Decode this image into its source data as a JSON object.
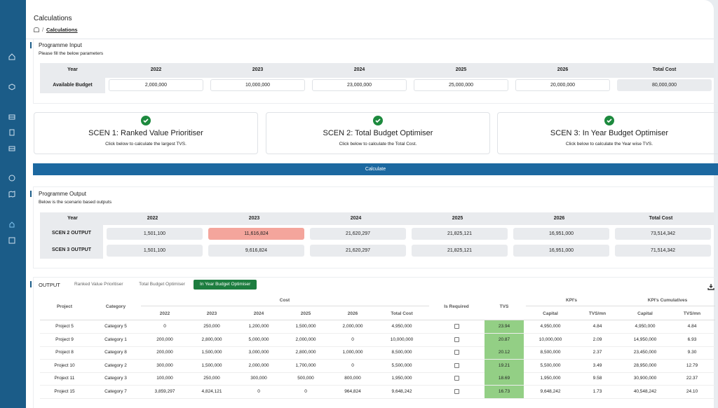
{
  "header": {
    "title": "Calculations",
    "breadcrumb": "Calculations"
  },
  "input": {
    "title": "Programme Input",
    "subtitle": "Please fill the below parameters",
    "columns": [
      "Year",
      "2022",
      "2023",
      "2024",
      "2025",
      "2026",
      "Total Cost"
    ],
    "row_label": "Available Budget",
    "values": [
      "2,000,000",
      "10,000,000",
      "23,000,000",
      "25,000,000",
      "20,000,000",
      "80,000,000"
    ]
  },
  "scenarios": [
    {
      "title": "SCEN 1: Ranked Value Prioritiser",
      "description": "Click below to calculate the largest TVS."
    },
    {
      "title": "SCEN 2: Total Budget Optimiser",
      "description": "Click below to calculate the Total Cost."
    },
    {
      "title": "SCEN 3: In Year Budget Optimiser",
      "description": "Click below to calculate the Year wise TVS."
    }
  ],
  "calculate_button": "Calculate",
  "output": {
    "title": "Programme Output",
    "subtitle": "Below is the scenario based outputs",
    "columns": [
      "Year",
      "2022",
      "2023",
      "2024",
      "2025",
      "2026",
      "Total Cost"
    ],
    "rows": [
      {
        "label": "SCEN 2 OUTPUT",
        "values": [
          "1,501,100",
          "11,616,824",
          "21,620,297",
          "21,825,121",
          "16,951,000",
          "73,514,342"
        ]
      },
      {
        "label": "SCEN 3 OUTPUT",
        "values": [
          "1,501,100",
          "9,616,824",
          "21,620,297",
          "21,825,121",
          "16,951,000",
          "71,514,342"
        ]
      }
    ],
    "highlight": {
      "row": 0,
      "column": 1
    }
  },
  "results": {
    "label": "OUTPUT",
    "tabs": [
      "Ranked Value Prioritiser",
      "Total Budget Optimiser",
      "In Year Budget Optimiser"
    ],
    "active_tab": 2,
    "group_headers": {
      "cost": "Cost",
      "kpis": "KPI's",
      "cumulatives": "KPI's Cumulatives"
    },
    "columns": {
      "project": "Project",
      "category": "Category",
      "cost_years": [
        "2022",
        "2023",
        "2024",
        "2025",
        "2026",
        "Total Cost"
      ],
      "is_required": "Is Required",
      "tvs": "TVS",
      "kpis": [
        "Capital",
        "TVS/mn"
      ],
      "cumulatives": [
        "Capital",
        "TVS/mn"
      ]
    },
    "rows": [
      [
        "Project 5",
        "Category 5",
        "0",
        "250,000",
        "1,200,000",
        "1,500,000",
        "2,000,000",
        "4,950,000",
        "23.94",
        "4,950,000",
        "4.84",
        "4,950,000",
        "4.84"
      ],
      [
        "Project 9",
        "Category 1",
        "200,000",
        "2,800,000",
        "5,000,000",
        "2,000,000",
        "0",
        "10,000,000",
        "20.87",
        "10,000,000",
        "2.09",
        "14,950,000",
        "6.93"
      ],
      [
        "Project 8",
        "Category 8",
        "200,000",
        "1,500,000",
        "3,000,000",
        "2,800,000",
        "1,000,000",
        "8,500,000",
        "20.12",
        "8,500,000",
        "2.37",
        "23,450,000",
        "9.30"
      ],
      [
        "Project 10",
        "Category 2",
        "300,000",
        "1,500,000",
        "2,000,000",
        "1,700,000",
        "0",
        "5,500,000",
        "19.21",
        "5,500,000",
        "3.49",
        "28,950,000",
        "12.79"
      ],
      [
        "Project 11",
        "Category 3",
        "100,000",
        "250,000",
        "300,000",
        "500,000",
        "800,000",
        "1,950,000",
        "18.69",
        "1,950,000",
        "9.58",
        "30,900,000",
        "22.37"
      ],
      [
        "Project 15",
        "Category 7",
        "3,859,297",
        "4,824,121",
        "0",
        "0",
        "964,824",
        "9,648,242",
        "16.73",
        "9,648,242",
        "1.73",
        "40,548,242",
        "24.10"
      ]
    ]
  }
}
